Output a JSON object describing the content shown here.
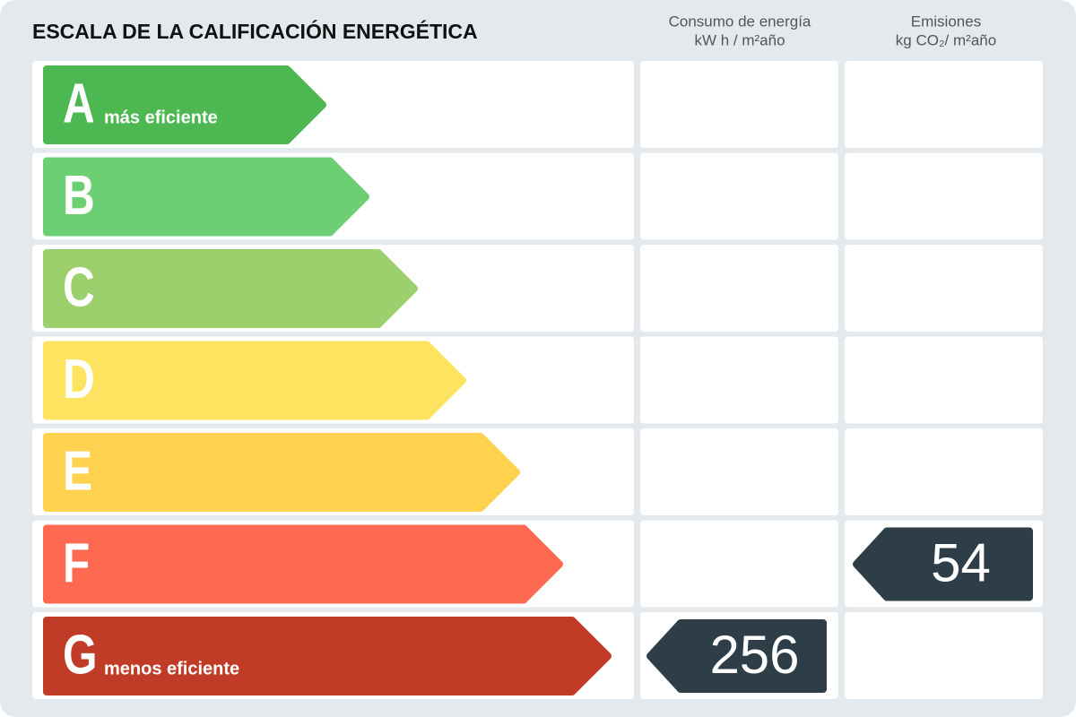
{
  "title": "ESCALA DE LA CALIFICACIÓN ENERGÉTICA",
  "columns": {
    "consumption": "Consumo de energía",
    "consumption_unit": "kW h / m²año",
    "emissions": "Emisiones",
    "emissions_unit": "kg CO₂/ m²año"
  },
  "ratings": [
    {
      "letter": "A",
      "note": "más eficiente",
      "color": "#4db852"
    },
    {
      "letter": "B",
      "color": "#6dcf73"
    },
    {
      "letter": "C",
      "color": "#9bd06c"
    },
    {
      "letter": "D",
      "color": "#fde35f"
    },
    {
      "letter": "E",
      "color": "#fed24f"
    },
    {
      "letter": "F",
      "color": "#fe6a51"
    },
    {
      "letter": "G",
      "note": "menos eficiente",
      "color": "#c03c27"
    }
  ],
  "consumption": {
    "rating": "G",
    "value": 256
  },
  "emissions": {
    "rating": "F",
    "value": 54
  }
}
